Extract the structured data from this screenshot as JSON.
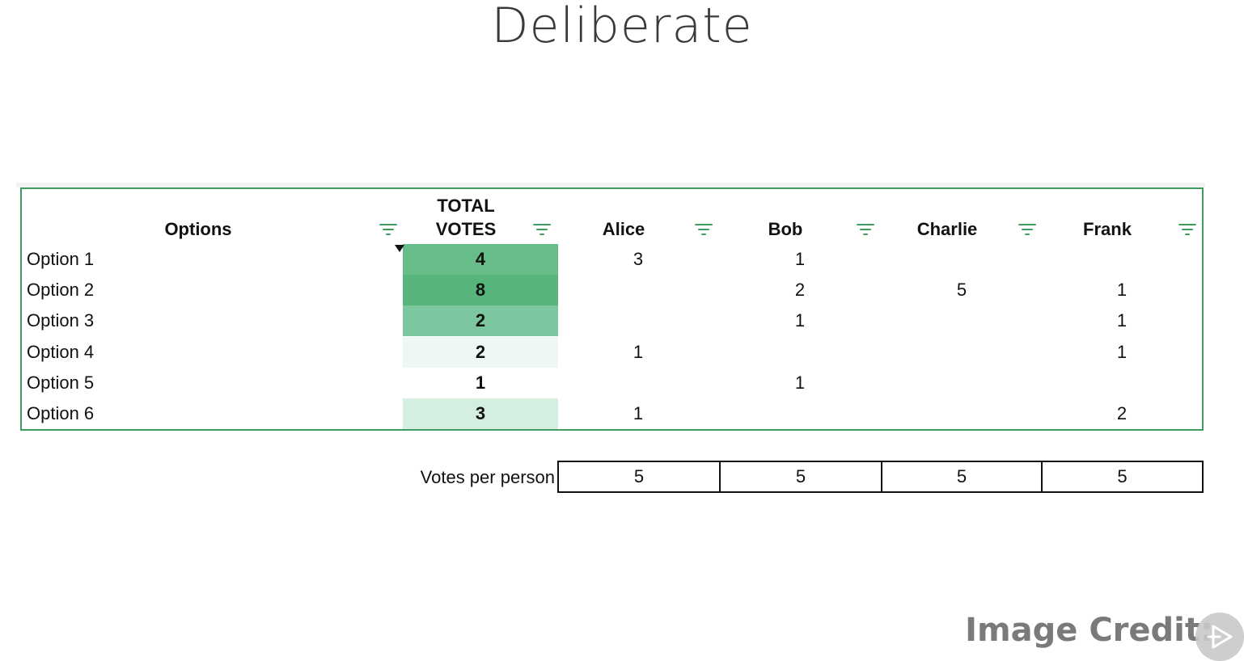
{
  "slide": {
    "title": "Deliberate",
    "credit": "Image Credit: Coinbase"
  },
  "table": {
    "headers": {
      "options": "Options",
      "total_line1": "TOTAL",
      "total_line2": "VOTES",
      "alice": "Alice",
      "bob": "Bob",
      "charlie": "Charlie",
      "frank": "Frank"
    },
    "rows": [
      {
        "option": "Option 1",
        "total": "4",
        "alice": "3",
        "bob": "1",
        "charlie": "",
        "frank": ""
      },
      {
        "option": "Option 2",
        "total": "8",
        "alice": "",
        "bob": "2",
        "charlie": "5",
        "frank": "1"
      },
      {
        "option": "Option 3",
        "total": "2",
        "alice": "",
        "bob": "1",
        "charlie": "",
        "frank": "1"
      },
      {
        "option": "Option 4",
        "total": "2",
        "alice": "1",
        "bob": "",
        "charlie": "",
        "frank": "1"
      },
      {
        "option": "Option 5",
        "total": "1",
        "alice": "",
        "bob": "1",
        "charlie": "",
        "frank": ""
      },
      {
        "option": "Option 6",
        "total": "3",
        "alice": "1",
        "bob": "",
        "charlie": "",
        "frank": "2"
      }
    ],
    "total_fill_colors": [
      "#66bd8a",
      "#57b57c",
      "#7cc7a0",
      "#eef8f2",
      "#ffffff",
      "#d4eedf"
    ],
    "votes_per_person": {
      "label": "Votes per person",
      "alice": "5",
      "bob": "5",
      "charlie": "5",
      "frank": "5"
    }
  },
  "icons": {
    "column_filter": "filter-icon",
    "play": "play-icon"
  }
}
